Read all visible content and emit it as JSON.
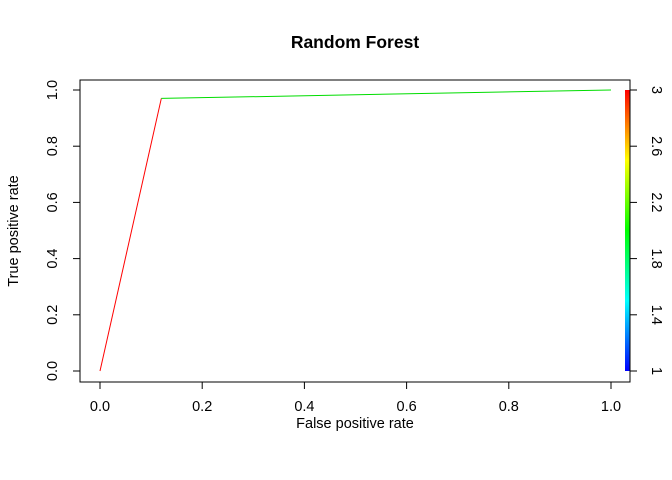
{
  "chart_data": {
    "type": "line",
    "title": "Random Forest",
    "xlabel": "False positive rate",
    "ylabel": "True positive rate",
    "xlim": [
      0,
      1
    ],
    "ylim": [
      0,
      1
    ],
    "x_ticks": [
      "0.0",
      "0.2",
      "0.4",
      "0.6",
      "0.8",
      "1.0"
    ],
    "y_ticks": [
      "0.0",
      "0.2",
      "0.4",
      "0.6",
      "0.8",
      "1.0"
    ],
    "grid": false,
    "series": [
      {
        "x": [
          0.0,
          0.12,
          1.0
        ],
        "y": [
          0.0,
          0.97,
          1.0
        ],
        "cutoff": [
          3.0,
          2.0,
          1.0
        ],
        "segment_colors": [
          "#ff0000",
          "#00dd00"
        ]
      }
    ],
    "colorbar": {
      "range": [
        1,
        3
      ],
      "ticks": [
        "1",
        "1.4",
        "1.8",
        "2.2",
        "2.6",
        "3"
      ],
      "colors": [
        "#0000ff",
        "#00ffff",
        "#00ff00",
        "#ffff00",
        "#ff0000"
      ]
    }
  }
}
